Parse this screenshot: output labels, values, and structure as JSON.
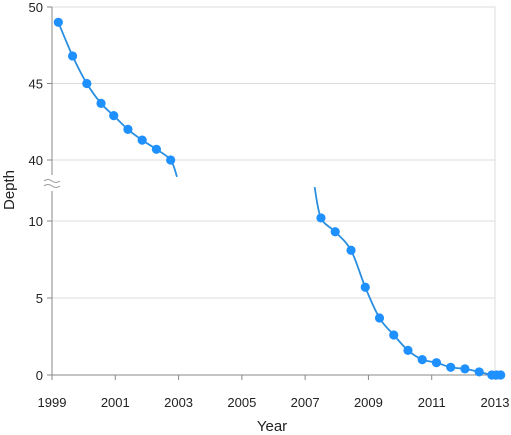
{
  "chart_data": {
    "type": "line",
    "title": "",
    "xlabel": "Year",
    "ylabel": "Depth",
    "xlim": [
      1999,
      2013
    ],
    "x_ticks": [
      "1999",
      "2001",
      "2003",
      "2005",
      "2007",
      "2009",
      "2011",
      "2013"
    ],
    "y_axis_break": true,
    "y_upper_segment": {
      "range": [
        40,
        50
      ],
      "ticks": [
        "50",
        "45",
        "40"
      ]
    },
    "y_lower_segment": {
      "range": [
        0,
        12
      ],
      "ticks": [
        "10",
        "5",
        "0"
      ]
    },
    "grid": {
      "horizontal": true,
      "vertical": false
    },
    "line_color": "#2a8fe0",
    "marker_color": "#1e90ff",
    "segments": [
      {
        "points": [
          {
            "x": 1999.2,
            "y": 49.0
          },
          {
            "x": 1999.65,
            "y": 46.8
          },
          {
            "x": 2000.1,
            "y": 45.0
          },
          {
            "x": 2000.55,
            "y": 43.7
          },
          {
            "x": 2000.95,
            "y": 42.9
          },
          {
            "x": 2001.4,
            "y": 42.0
          },
          {
            "x": 2001.85,
            "y": 41.3
          },
          {
            "x": 2002.3,
            "y": 40.7
          },
          {
            "x": 2002.75,
            "y": 40.0
          }
        ],
        "trail_end": {
          "x": 2002.95,
          "y": 38.9
        }
      },
      {
        "trail_start": {
          "x": 2007.3,
          "y": 12.2
        },
        "points": [
          {
            "x": 2007.5,
            "y": 10.2
          },
          {
            "x": 2007.95,
            "y": 9.3
          },
          {
            "x": 2008.45,
            "y": 8.1
          },
          {
            "x": 2008.9,
            "y": 5.7
          },
          {
            "x": 2009.35,
            "y": 3.7
          },
          {
            "x": 2009.8,
            "y": 2.6
          },
          {
            "x": 2010.25,
            "y": 1.6
          },
          {
            "x": 2010.7,
            "y": 1.0
          },
          {
            "x": 2011.15,
            "y": 0.8
          },
          {
            "x": 2011.6,
            "y": 0.5
          },
          {
            "x": 2012.05,
            "y": 0.4
          },
          {
            "x": 2012.5,
            "y": 0.2
          },
          {
            "x": 2012.9,
            "y": 0.0
          },
          {
            "x": 2013.05,
            "y": 0.0
          },
          {
            "x": 2013.18,
            "y": 0.0
          }
        ]
      }
    ]
  }
}
